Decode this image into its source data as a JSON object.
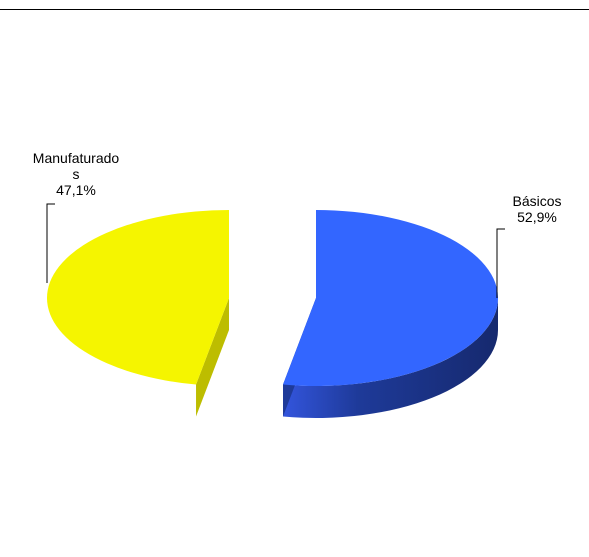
{
  "chart_data": {
    "type": "pie",
    "title": "",
    "slices": [
      {
        "name": "Básicos",
        "value": 52.9,
        "label_lines": [
          "Básicos",
          "52,9%"
        ],
        "color": "#3366FF",
        "side_color": "#1E3A99"
      },
      {
        "name": "Manufaturados",
        "value": 47.1,
        "label_lines": [
          "Manufaturado",
          "s",
          "47,1%"
        ],
        "color": "#F5F500",
        "side_color": "#BDBD00"
      }
    ],
    "exploded": true,
    "three_d": true,
    "legend": "none"
  }
}
